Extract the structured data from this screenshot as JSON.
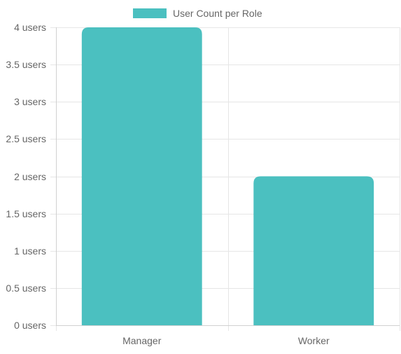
{
  "chart_data": {
    "type": "bar",
    "categories": [
      "Manager",
      "Worker"
    ],
    "series": [
      {
        "name": "User Count per Role",
        "values": [
          4,
          2
        ],
        "color": "#4bc0c0"
      }
    ],
    "y_ticks": [
      {
        "value": 0,
        "label": "0 users"
      },
      {
        "value": 0.5,
        "label": "0.5 users"
      },
      {
        "value": 1,
        "label": "1 users"
      },
      {
        "value": 1.5,
        "label": "1.5 users"
      },
      {
        "value": 2,
        "label": "2 users"
      },
      {
        "value": 2.5,
        "label": "2.5 users"
      },
      {
        "value": 3,
        "label": "3 users"
      },
      {
        "value": 3.5,
        "label": "3.5 users"
      },
      {
        "value": 4,
        "label": "4 users"
      }
    ],
    "ylim": [
      0,
      4
    ],
    "grid": true,
    "legend_position": "top-center",
    "grid_color": "#e6e6e6",
    "axis_text_color": "#666666"
  }
}
